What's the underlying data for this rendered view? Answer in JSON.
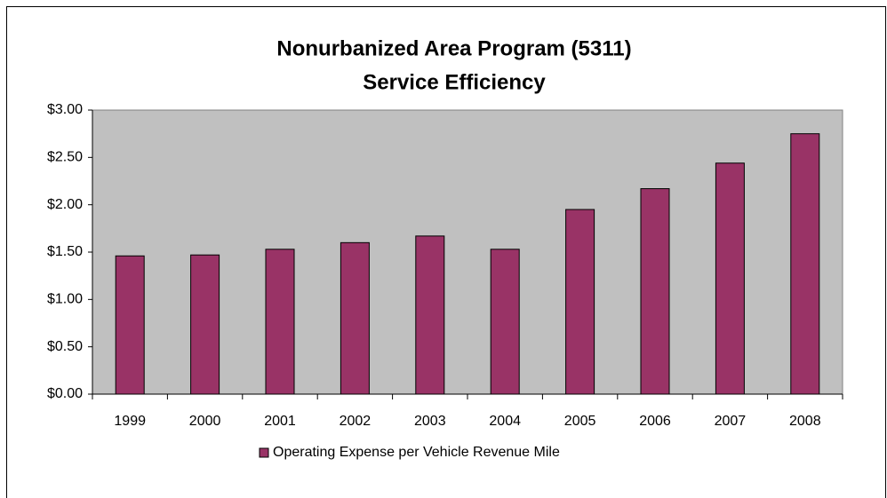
{
  "chart_data": {
    "type": "bar",
    "title": [
      "Nonurbanized Area Program (5311)",
      "Service Efficiency"
    ],
    "categories": [
      "1999",
      "2000",
      "2001",
      "2002",
      "2003",
      "2004",
      "2005",
      "2006",
      "2007",
      "2008"
    ],
    "series": [
      {
        "name": "Operating Expense per Vehicle Revenue Mile",
        "color": "#993366",
        "values": [
          1.46,
          1.47,
          1.53,
          1.6,
          1.67,
          1.53,
          1.95,
          2.17,
          2.44,
          2.75
        ]
      }
    ],
    "ylim": [
      0,
      3
    ],
    "yticks": [
      {
        "value": 0,
        "label": "$0.00"
      },
      {
        "value": 0.5,
        "label": "$0.50"
      },
      {
        "value": 1,
        "label": "$1.00"
      },
      {
        "value": 1.5,
        "label": "$1.50"
      },
      {
        "value": 2,
        "label": "$2.00"
      },
      {
        "value": 2.5,
        "label": "$2.50"
      },
      {
        "value": 3,
        "label": "$3.00"
      }
    ],
    "grid": false,
    "legend": "bottom"
  }
}
